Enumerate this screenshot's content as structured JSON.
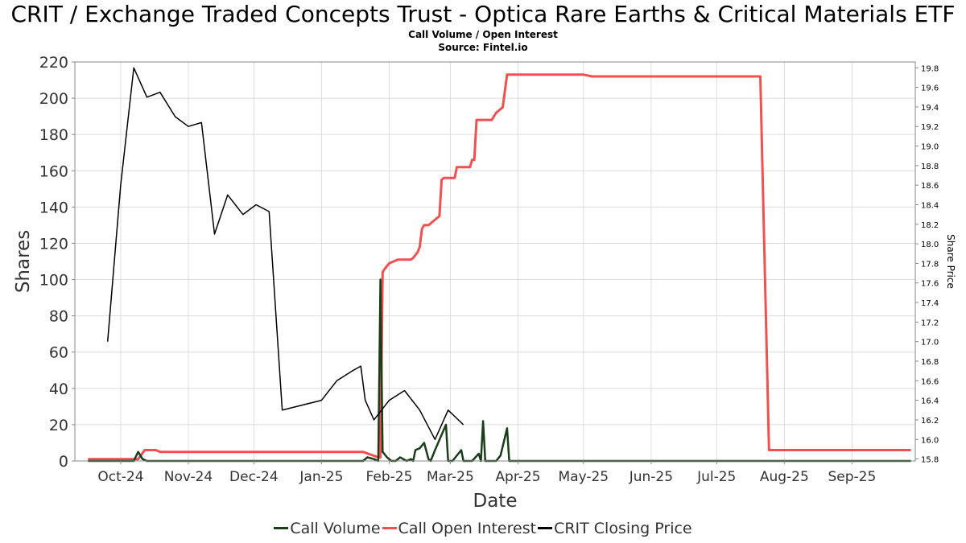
{
  "title": "CRIT / Exchange Traded Concepts Trust - Optica Rare Earths & Critical Materials ETF",
  "subtitle": "Call Volume / Open Interest",
  "source": "Source: Fintel.io",
  "colors": {
    "call_volume": "#1a3d1a",
    "call_open_interest": "#f05050",
    "closing_price": "#000000",
    "grid": "#dcdcdc"
  },
  "chart_data": {
    "type": "line",
    "xlabel": "Date",
    "ylabel": "Shares",
    "ylabel_right": "Share Price",
    "ylim": [
      0,
      220
    ],
    "ylim_right": [
      15.78,
      19.86
    ],
    "xlim": [
      "2024-09-10",
      "2025-09-30"
    ],
    "y_ticks": [
      0,
      20,
      40,
      60,
      80,
      100,
      120,
      140,
      160,
      180,
      200,
      220
    ],
    "y_ticks_right": [
      15.8,
      16.0,
      16.2,
      16.4,
      16.6,
      16.8,
      17.0,
      17.2,
      17.4,
      17.6,
      17.8,
      18.0,
      18.2,
      18.4,
      18.6,
      18.8,
      19.0,
      19.2,
      19.4,
      19.6,
      19.8
    ],
    "x_ticks": [
      {
        "date": "2024-10-01",
        "label": "Oct-24"
      },
      {
        "date": "2024-11-01",
        "label": "Nov-24"
      },
      {
        "date": "2024-12-01",
        "label": "Dec-24"
      },
      {
        "date": "2025-01-01",
        "label": "Jan-25"
      },
      {
        "date": "2025-02-01",
        "label": "Feb-25"
      },
      {
        "date": "2025-03-01",
        "label": "Mar-25"
      },
      {
        "date": "2025-04-01",
        "label": "Apr-25"
      },
      {
        "date": "2025-05-01",
        "label": "May-25"
      },
      {
        "date": "2025-06-01",
        "label": "Jun-25"
      },
      {
        "date": "2025-07-01",
        "label": "Jul-25"
      },
      {
        "date": "2025-08-01",
        "label": "Aug-25"
      },
      {
        "date": "2025-09-01",
        "label": "Sep-25"
      }
    ],
    "grid": true,
    "legend_position": "bottom",
    "series": [
      {
        "name": "Call Volume",
        "axis": "left",
        "points": [
          [
            "2024-09-16",
            0
          ],
          [
            "2024-10-07",
            0
          ],
          [
            "2024-10-09",
            5
          ],
          [
            "2024-10-11",
            1
          ],
          [
            "2024-10-13",
            0
          ],
          [
            "2025-01-20",
            0
          ],
          [
            "2025-01-22",
            2
          ],
          [
            "2025-01-25",
            1
          ],
          [
            "2025-01-27",
            0
          ],
          [
            "2025-01-28",
            100
          ],
          [
            "2025-01-29",
            5
          ],
          [
            "2025-01-31",
            2
          ],
          [
            "2025-02-02",
            0
          ],
          [
            "2025-02-04",
            0
          ],
          [
            "2025-02-06",
            2
          ],
          [
            "2025-02-09",
            0
          ],
          [
            "2025-02-11",
            1
          ],
          [
            "2025-02-12",
            0
          ],
          [
            "2025-02-13",
            6
          ],
          [
            "2025-02-15",
            7
          ],
          [
            "2025-02-17",
            10
          ],
          [
            "2025-02-19",
            1
          ],
          [
            "2025-02-20",
            0
          ],
          [
            "2025-02-22",
            6
          ],
          [
            "2025-02-27",
            20
          ],
          [
            "2025-02-28",
            0
          ],
          [
            "2025-03-02",
            0
          ],
          [
            "2025-03-06",
            6
          ],
          [
            "2025-03-07",
            0
          ],
          [
            "2025-03-11",
            0
          ],
          [
            "2025-03-14",
            4
          ],
          [
            "2025-03-15",
            0
          ],
          [
            "2025-03-16",
            22
          ],
          [
            "2025-03-17",
            0
          ],
          [
            "2025-03-22",
            0
          ],
          [
            "2025-03-24",
            3
          ],
          [
            "2025-03-27",
            18
          ],
          [
            "2025-03-28",
            0
          ],
          [
            "2025-09-28",
            0
          ]
        ]
      },
      {
        "name": "Call Open Interest",
        "axis": "left",
        "points": [
          [
            "2024-09-16",
            1
          ],
          [
            "2024-10-09",
            1
          ],
          [
            "2024-10-12",
            6
          ],
          [
            "2024-10-17",
            6
          ],
          [
            "2024-10-19",
            5
          ],
          [
            "2025-01-20",
            5
          ],
          [
            "2025-01-27",
            2
          ],
          [
            "2025-01-28",
            2
          ],
          [
            "2025-01-29",
            104
          ],
          [
            "2025-01-30",
            106
          ],
          [
            "2025-02-01",
            109
          ],
          [
            "2025-02-03",
            110
          ],
          [
            "2025-02-05",
            111
          ],
          [
            "2025-02-11",
            111
          ],
          [
            "2025-02-12",
            112
          ],
          [
            "2025-02-14",
            115
          ],
          [
            "2025-02-15",
            118
          ],
          [
            "2025-02-16",
            128
          ],
          [
            "2025-02-17",
            130
          ],
          [
            "2025-02-19",
            130
          ],
          [
            "2025-02-24",
            135
          ],
          [
            "2025-02-25",
            155
          ],
          [
            "2025-02-26",
            156
          ],
          [
            "2025-03-03",
            156
          ],
          [
            "2025-03-04",
            162
          ],
          [
            "2025-03-10",
            162
          ],
          [
            "2025-03-11",
            166
          ],
          [
            "2025-03-12",
            166
          ],
          [
            "2025-03-13",
            188
          ],
          [
            "2025-03-20",
            188
          ],
          [
            "2025-03-22",
            192
          ],
          [
            "2025-03-25",
            195
          ],
          [
            "2025-03-27",
            213
          ],
          [
            "2025-05-01",
            213
          ],
          [
            "2025-05-05",
            212
          ],
          [
            "2025-07-21",
            212
          ],
          [
            "2025-07-25",
            6
          ],
          [
            "2025-09-28",
            6
          ]
        ]
      },
      {
        "name": "CRIT Closing Price",
        "axis": "right",
        "points": [
          [
            "2024-09-25",
            17.0
          ],
          [
            "2024-10-01",
            18.6
          ],
          [
            "2024-10-07",
            19.8
          ],
          [
            "2024-10-13",
            19.5
          ],
          [
            "2024-10-19",
            19.55
          ],
          [
            "2024-10-26",
            19.3
          ],
          [
            "2024-11-01",
            19.2
          ],
          [
            "2024-11-07",
            19.24
          ],
          [
            "2024-11-13",
            18.1
          ],
          [
            "2024-11-19",
            18.5
          ],
          [
            "2024-11-26",
            18.3
          ],
          [
            "2024-12-02",
            18.4
          ],
          [
            "2024-12-08",
            18.33
          ],
          [
            "2024-12-14",
            16.3
          ],
          [
            "2025-01-01",
            16.4
          ],
          [
            "2025-01-08",
            16.6
          ],
          [
            "2025-01-15",
            16.7
          ],
          [
            "2025-01-19",
            16.75
          ],
          [
            "2025-01-21",
            16.4
          ],
          [
            "2025-01-25",
            16.2
          ],
          [
            "2025-02-01",
            16.4
          ],
          [
            "2025-02-08",
            16.5
          ],
          [
            "2025-02-15",
            16.3
          ],
          [
            "2025-02-22",
            16.0
          ],
          [
            "2025-02-28",
            16.3
          ],
          [
            "2025-03-07",
            16.15
          ]
        ]
      }
    ]
  }
}
